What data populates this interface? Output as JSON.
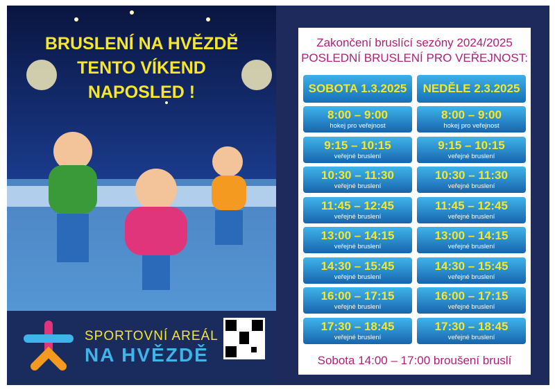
{
  "poster": {
    "title_lines": [
      "BRUSLENÍ NA HVĚZDĚ",
      "TENTO VÍKEND",
      "NAPOSLED !"
    ],
    "logo_lines": [
      "SPORTOVNÍ AREÁL",
      "NA HVĚZDĚ"
    ]
  },
  "schedule": {
    "heading": "Zakončení bruslící sezóny 2024/2025",
    "subheading": "POSLEDNÍ BRUSLENÍ PRO VEŘEJNOST:",
    "days": [
      {
        "name": "SOBOTA 1.3.2025",
        "slots": [
          {
            "time": "8:00 – 9:00",
            "label": "hokej pro veřejnost"
          },
          {
            "time": "9:15 – 10:15",
            "label": "veřejné bruslení"
          },
          {
            "time": "10:30 – 11:30",
            "label": "veřejné bruslení"
          },
          {
            "time": "11:45 – 12:45",
            "label": "veřejné bruslení"
          },
          {
            "time": "13:00 – 14:15",
            "label": "veřejné bruslení"
          },
          {
            "time": "14:30 – 15:45",
            "label": "veřejné bruslení"
          },
          {
            "time": "16:00 – 17:15",
            "label": "veřejné bruslení"
          },
          {
            "time": "17:30 – 18:45",
            "label": "veřejné bruslení"
          }
        ]
      },
      {
        "name": "NEDĚLE 2.3.2025",
        "slots": [
          {
            "time": "8:00 – 9:00",
            "label": "hokej pro veřejnost"
          },
          {
            "time": "9:15 – 10:15",
            "label": "veřejné bruslení"
          },
          {
            "time": "10:30 – 11:30",
            "label": "veřejné bruslení"
          },
          {
            "time": "11:45 – 12:45",
            "label": "veřejné bruslení"
          },
          {
            "time": "13:00 – 14:15",
            "label": "veřejné bruslení"
          },
          {
            "time": "14:30 – 15:45",
            "label": "veřejné bruslení"
          },
          {
            "time": "16:00 – 17:15",
            "label": "veřejné bruslení"
          },
          {
            "time": "17:30 – 18:45",
            "label": "veřejné bruslení"
          }
        ]
      }
    ],
    "footer": "Sobota 14:00 – 17:00 broušení bruslí"
  }
}
